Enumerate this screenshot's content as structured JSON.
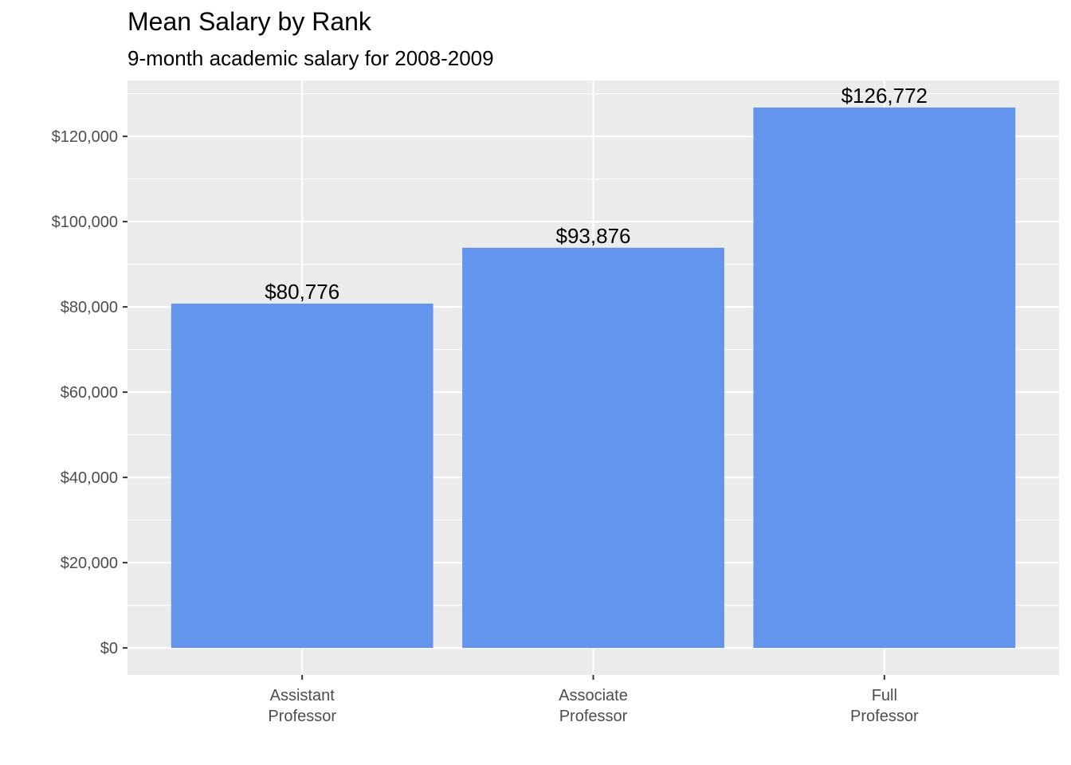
{
  "chart_data": {
    "type": "bar",
    "title": "Mean Salary by Rank",
    "subtitle": "9-month academic salary for 2008-2009",
    "xlabel": "",
    "ylabel": "",
    "categories": [
      [
        "Assistant",
        "Professor"
      ],
      [
        "Associate",
        "Professor"
      ],
      [
        "Full",
        "Professor"
      ]
    ],
    "values": [
      80776,
      93876,
      126772
    ],
    "data_labels": [
      "$80,776",
      "$93,876",
      "$126,772"
    ],
    "y_ticks": [
      0,
      20000,
      40000,
      60000,
      80000,
      100000,
      120000
    ],
    "y_tick_labels": [
      "$0",
      "$20,000",
      "$40,000",
      "$60,000",
      "$80,000",
      "$100,000",
      "$120,000"
    ],
    "ylim": [
      -6338.6,
      133110.6
    ],
    "grid": true,
    "legend": "none",
    "colors": {
      "bar": "#6495ED",
      "panel_background": "#EBEBEB",
      "grid_line": "#FFFFFF",
      "tick_label": "#4D4D4D",
      "tick_mark": "#333333"
    }
  }
}
